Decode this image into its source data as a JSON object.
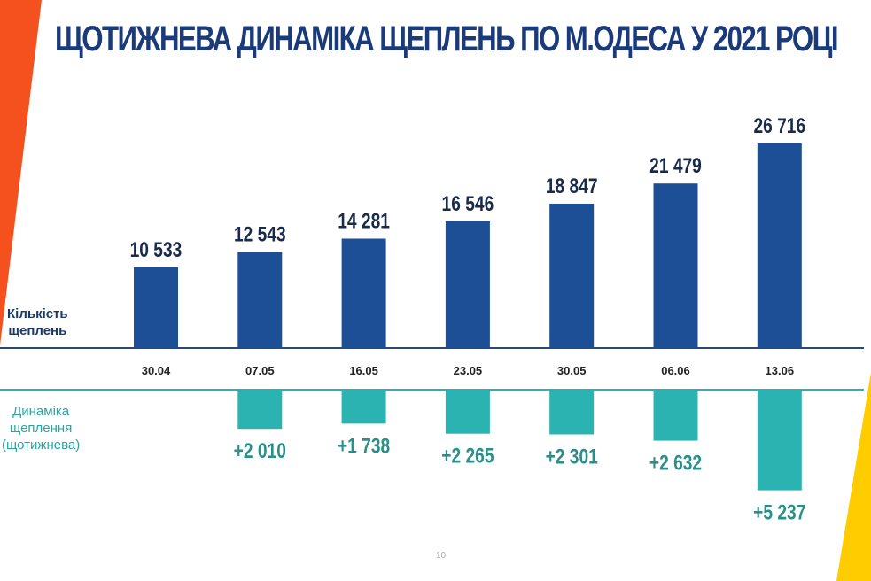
{
  "title": "ЩОТИЖНЕВА ДИНАМІКА ЩЕПЛЕНЬ ПО М.ОДЕСА У 2021 РОЦІ",
  "labels": {
    "count": [
      "Кількість",
      "щеплень"
    ],
    "dynamics": [
      "Динаміка",
      "щеплення",
      "(щотижнева)"
    ]
  },
  "page_number": "10",
  "colors": {
    "title": "#1a3a7a",
    "bar": "#1c4f96",
    "delta": "#2bb3b1",
    "delta_text": "#2a8f8a",
    "orange": "#f4511e",
    "yellow": "#ffcc00"
  },
  "chart_data": {
    "type": "bar",
    "title": "ЩОТИЖНЕВА ДИНАМІКА ЩЕПЛЕНЬ ПО М.ОДЕСА У 2021 РОЦІ",
    "categories": [
      "30.04",
      "07.05",
      "16.05",
      "23.05",
      "30.05",
      "06.06",
      "13.06"
    ],
    "series": [
      {
        "name": "Кількість щеплень",
        "values": [
          10533,
          12543,
          14281,
          16546,
          18847,
          21479,
          26716
        ],
        "labels": [
          "10 533",
          "12 543",
          "14 281",
          "16 546",
          "18 847",
          "21 479",
          "26 716"
        ]
      },
      {
        "name": "Динаміка щеплення (щотижнева)",
        "values": [
          null,
          2010,
          1738,
          2265,
          2301,
          2632,
          5237
        ],
        "labels": [
          "",
          "+2 010",
          "+1 738",
          "+2 265",
          "+2 301",
          "+2 632",
          "+5 237"
        ]
      }
    ],
    "xlabel": "",
    "ylabel": "",
    "grid": false
  }
}
